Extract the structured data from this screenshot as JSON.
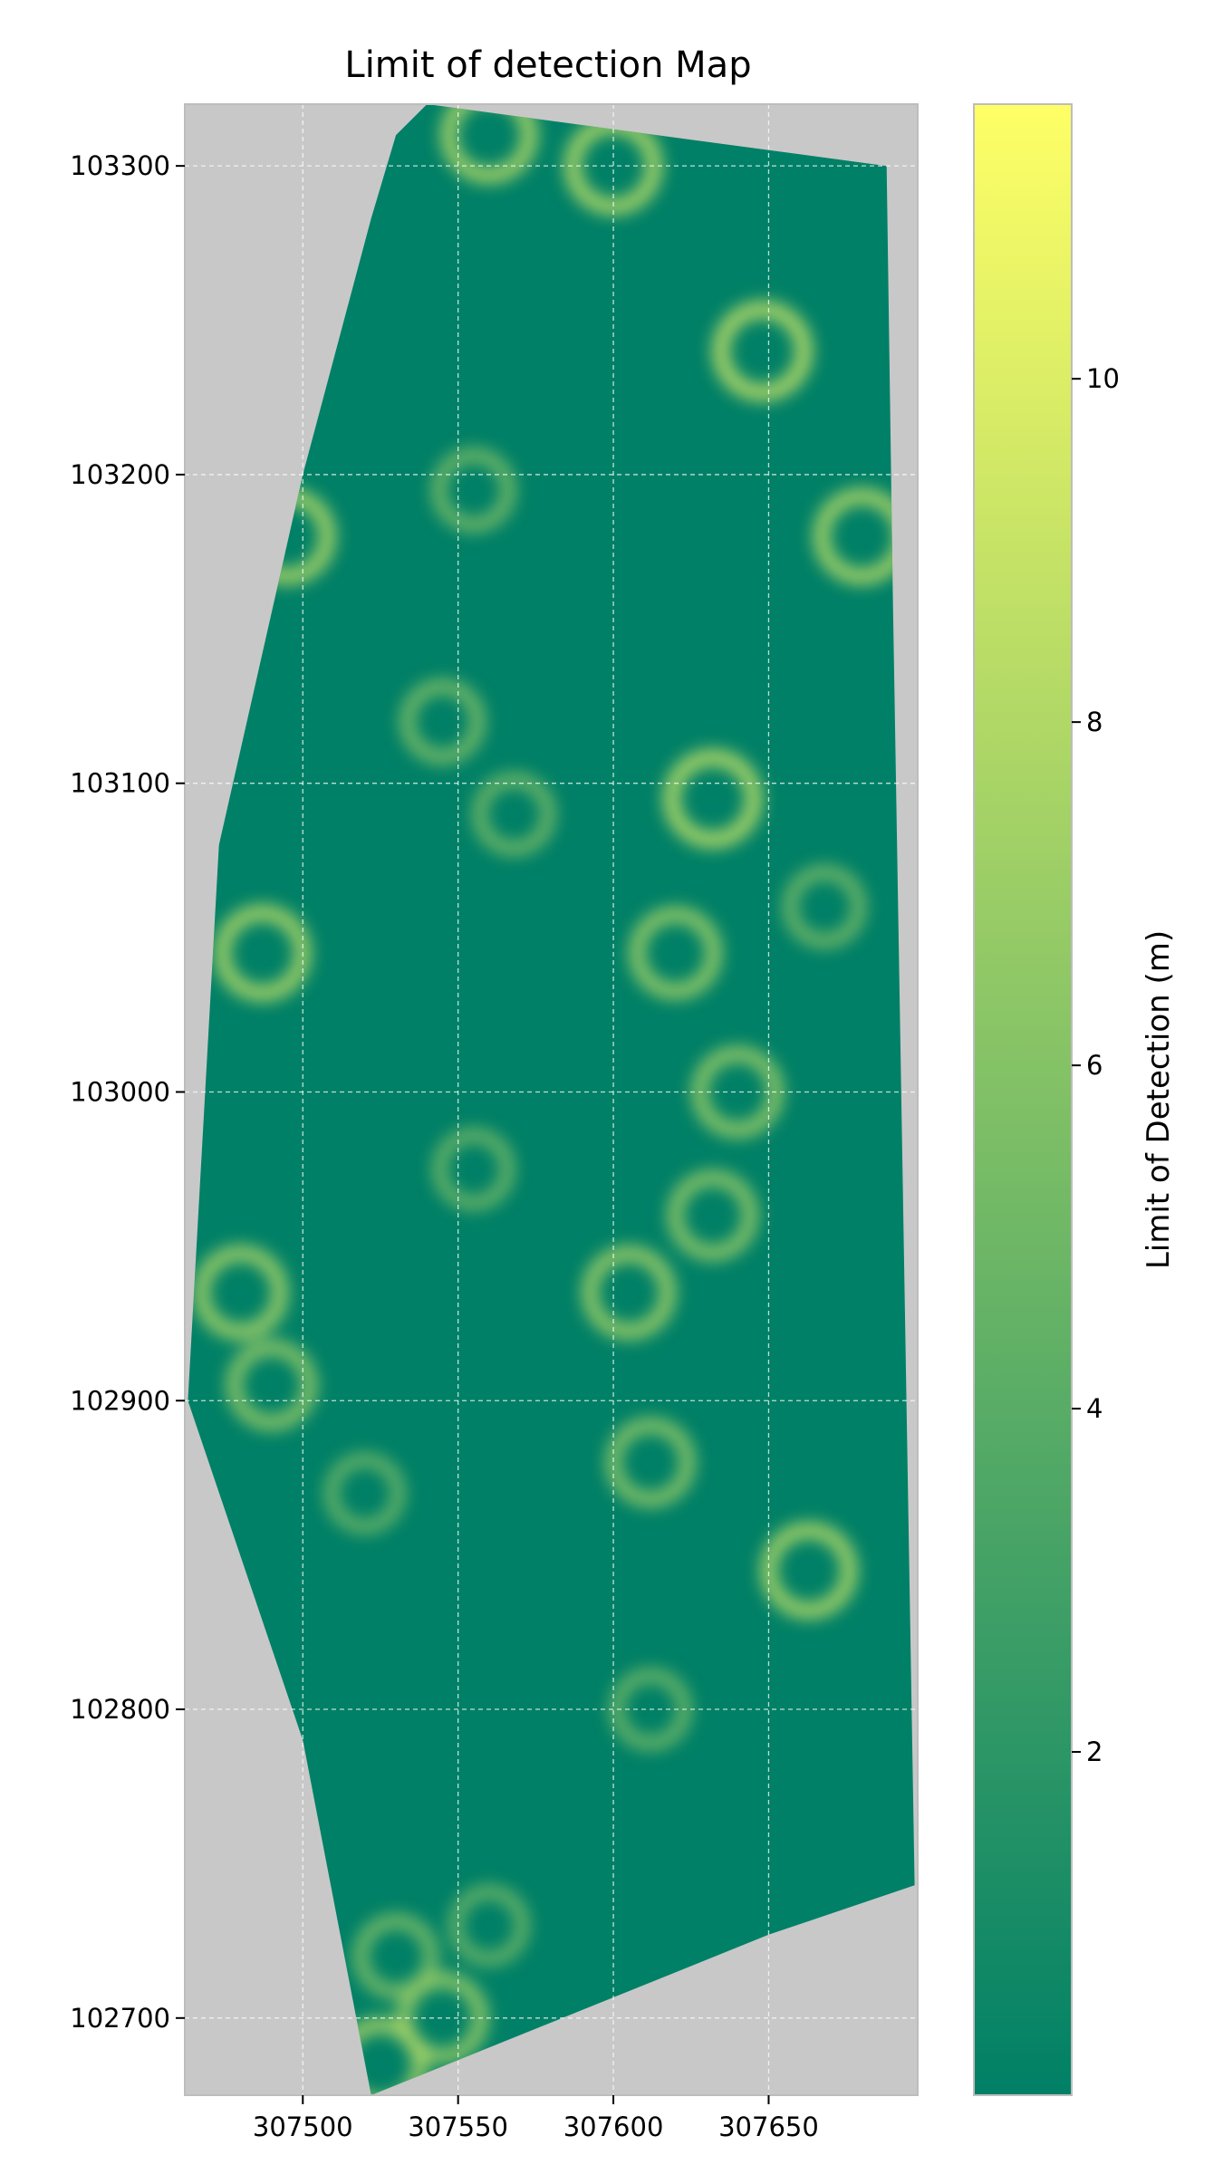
{
  "chart_data": {
    "type": "heatmap",
    "title": "Limit of detection Map",
    "xlabel": "",
    "ylabel": "",
    "x_ticks": [
      307500,
      307550,
      307600,
      307650
    ],
    "y_ticks": [
      102700,
      102800,
      102900,
      103000,
      103100,
      103200,
      103300
    ],
    "xlim": [
      307462,
      307698
    ],
    "ylim": [
      102675,
      103320
    ],
    "grid": true,
    "colormap": "summer",
    "colors": {
      "low": "#008066",
      "high": "#ffff66",
      "background": "#c8c8c8",
      "grid": "#ffffff"
    },
    "colorbar": {
      "label": "Limit of Detection (m)",
      "range": [
        0,
        11.6
      ],
      "ticks": [
        2,
        4,
        6,
        8,
        10
      ]
    },
    "survey_outline": [
      [
        307522,
        103283
      ],
      [
        307530,
        103310
      ],
      [
        307540,
        103320
      ],
      [
        307688,
        103300
      ],
      [
        307690,
        103160
      ],
      [
        307697,
        102743
      ],
      [
        307650,
        102727
      ],
      [
        307522,
        102675
      ],
      [
        307500,
        102790
      ],
      [
        307463,
        102900
      ],
      [
        307473,
        103080
      ],
      [
        307500,
        103200
      ]
    ],
    "high_regions": [
      {
        "x": 307600,
        "y": 103300,
        "level": 9.2
      },
      {
        "x": 307648,
        "y": 103240,
        "level": 9.6
      },
      {
        "x": 307680,
        "y": 103180,
        "level": 9.0
      },
      {
        "x": 307632,
        "y": 103095,
        "level": 9.4
      },
      {
        "x": 307620,
        "y": 103045,
        "level": 8.2
      },
      {
        "x": 307487,
        "y": 103045,
        "level": 9.0
      },
      {
        "x": 307640,
        "y": 103000,
        "level": 8.0
      },
      {
        "x": 307632,
        "y": 102960,
        "level": 7.8
      },
      {
        "x": 307605,
        "y": 102935,
        "level": 8.4
      },
      {
        "x": 307480,
        "y": 102935,
        "level": 8.6
      },
      {
        "x": 307490,
        "y": 102905,
        "level": 7.8
      },
      {
        "x": 307663,
        "y": 102845,
        "level": 9.0
      },
      {
        "x": 307612,
        "y": 102880,
        "level": 7.6
      },
      {
        "x": 307545,
        "y": 102700,
        "level": 8.0
      },
      {
        "x": 307525,
        "y": 102685,
        "level": 8.6
      },
      {
        "x": 307560,
        "y": 103310,
        "level": 9.0
      },
      {
        "x": 307495,
        "y": 103180,
        "level": 9.0
      },
      {
        "x": 307555,
        "y": 103195,
        "level": 6.6
      },
      {
        "x": 307545,
        "y": 103120,
        "level": 6.8
      },
      {
        "x": 307568,
        "y": 103090,
        "level": 6.4
      },
      {
        "x": 307530,
        "y": 102720,
        "level": 6.8
      },
      {
        "x": 307560,
        "y": 102730,
        "level": 6.0
      },
      {
        "x": 307555,
        "y": 102975,
        "level": 6.2
      },
      {
        "x": 307520,
        "y": 102870,
        "level": 6.0
      },
      {
        "x": 307612,
        "y": 102800,
        "level": 6.2
      },
      {
        "x": 307668,
        "y": 103060,
        "level": 6.4
      }
    ]
  }
}
